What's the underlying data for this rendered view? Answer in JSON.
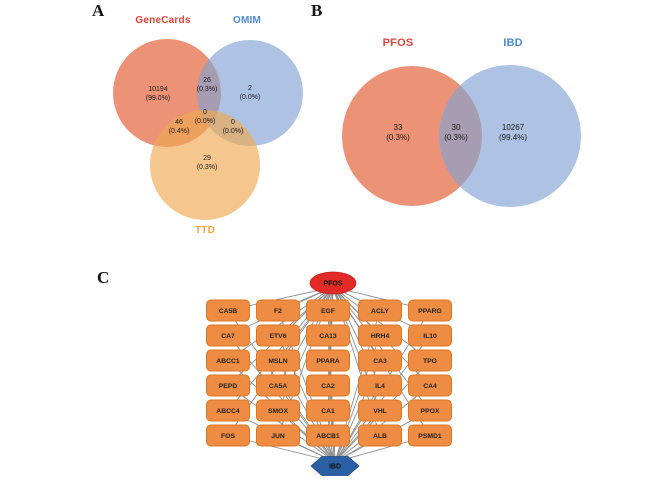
{
  "figure": {
    "background": "#ffffff"
  },
  "panels": {
    "a": {
      "label": "A",
      "type": "venn3",
      "sets": [
        {
          "name": "GeneCards",
          "label_color": "#e0433c",
          "fill": "rgba(226,87,46,0.65)"
        },
        {
          "name": "OMIM",
          "label_color": "#4c8bd0",
          "fill": "rgba(130,163,212,0.65)"
        },
        {
          "name": "TTD",
          "label_color": "#f2a64b",
          "fill": "rgba(239,169,81,0.65)"
        }
      ],
      "regions": [
        {
          "region": "GeneCards only",
          "count": "10194",
          "pct": "(99.0%)"
        },
        {
          "region": "GeneCards and OMIM",
          "count": "26",
          "pct": "(0.3%)"
        },
        {
          "region": "OMIM only",
          "count": "2",
          "pct": "(0.0%)"
        },
        {
          "region": "GeneCards OMIM TTD",
          "count": "0",
          "pct": "(0.0%)"
        },
        {
          "region": "GeneCards and TTD",
          "count": "46",
          "pct": "(0.4%)"
        },
        {
          "region": "OMIM and TTD",
          "count": "0",
          "pct": "(0.0%)"
        },
        {
          "region": "TTD only",
          "count": "29",
          "pct": "(0.3%)"
        }
      ]
    },
    "b": {
      "label": "B",
      "type": "venn2",
      "sets": [
        {
          "name": "PFOS",
          "label_color": "#e0433c",
          "fill": "rgba(226,87,46,0.65)"
        },
        {
          "name": "IBD",
          "label_color": "#4c8bd0",
          "fill": "rgba(130,163,212,0.65)"
        }
      ],
      "regions": [
        {
          "region": "PFOS only",
          "count": "33",
          "pct": "(0.3%)"
        },
        {
          "region": "PFOS and IBD",
          "count": "30",
          "pct": "(0.3%)"
        },
        {
          "region": "IBD only",
          "count": "10267",
          "pct": "(99.4%)"
        }
      ]
    },
    "c": {
      "label": "C",
      "type": "network",
      "source": {
        "name": "PFOS",
        "shape": "ellipse",
        "fill": "#e22b26",
        "border": "#c41f1d"
      },
      "target": {
        "name": "IBD",
        "shape": "hexagon",
        "fill": "#2b5fa4",
        "border": "#1d4a87"
      },
      "node_fill": "#ef8c44",
      "node_border": "#d8761f",
      "edge_color": "#8f8f8f",
      "genes": [
        [
          "CA5B",
          "F2",
          "EGF",
          "ACLY",
          "PPARG"
        ],
        [
          "CA7",
          "ETV6",
          "CA13",
          "HRH4",
          "IL10"
        ],
        [
          "ABCC1",
          "MSLN",
          "PPARA",
          "CA3",
          "TPO"
        ],
        [
          "PEPD",
          "CA5A",
          "CA2",
          "IL4",
          "CA4"
        ],
        [
          "ABCC4",
          "SMOX",
          "CA1",
          "VHL",
          "PPOX"
        ],
        [
          "FOS",
          "JUN",
          "ABCB1",
          "ALB",
          "PSMD1"
        ]
      ]
    }
  },
  "chart_data": [
    {
      "type": "venn",
      "panel": "A",
      "sets": [
        "GeneCards",
        "OMIM",
        "TTD"
      ],
      "values": {
        "GeneCards_only": 10194,
        "GeneCards_OMIM": 26,
        "OMIM_only": 2,
        "GeneCards_OMIM_TTD": 0,
        "GeneCards_TTD": 46,
        "OMIM_TTD": 0,
        "TTD_only": 29
      },
      "percent": {
        "GeneCards_only": 99.0,
        "GeneCards_OMIM": 0.3,
        "OMIM_only": 0.0,
        "GeneCards_OMIM_TTD": 0.0,
        "GeneCards_TTD": 0.4,
        "OMIM_TTD": 0.0,
        "TTD_only": 0.3
      }
    },
    {
      "type": "venn",
      "panel": "B",
      "sets": [
        "PFOS",
        "IBD"
      ],
      "values": {
        "PFOS_only": 33,
        "PFOS_IBD": 30,
        "IBD_only": 10267
      },
      "percent": {
        "PFOS_only": 0.3,
        "PFOS_IBD": 0.3,
        "IBD_only": 99.4
      }
    },
    {
      "type": "network",
      "panel": "C",
      "source": "PFOS",
      "target": "IBD",
      "node_count": 30,
      "edge_rule": "every gene node links to both PFOS (top) and IBD (bottom)"
    }
  ]
}
